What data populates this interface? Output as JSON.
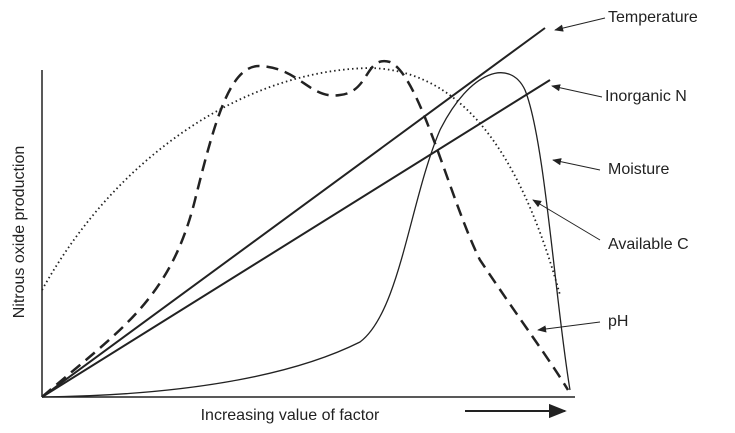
{
  "axes": {
    "y_label": "Nitrous oxide production",
    "x_label": "Increasing value of factor"
  },
  "curves": [
    {
      "label": "Temperature"
    },
    {
      "label": "Inorganic N"
    },
    {
      "label": "Moisture"
    },
    {
      "label": "Available C"
    },
    {
      "label": "pH"
    }
  ]
}
